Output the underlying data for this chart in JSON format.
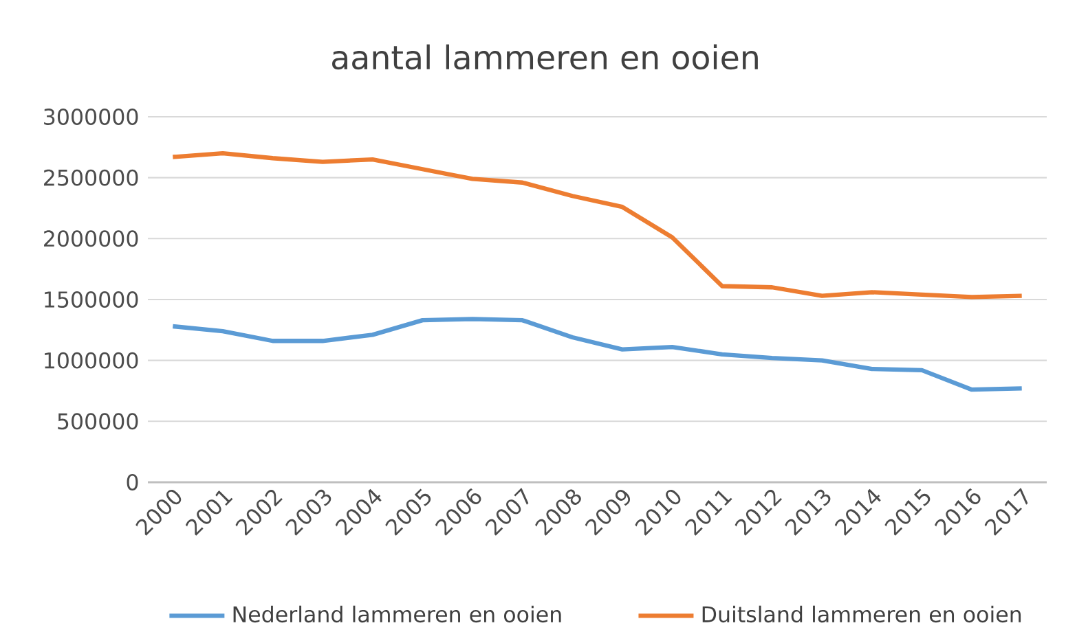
{
  "chart_data": {
    "type": "line",
    "title": "aantal lammeren en ooien",
    "categories": [
      "2000",
      "2001",
      "2002",
      "2003",
      "2004",
      "2005",
      "2006",
      "2007",
      "2008",
      "2009",
      "2010",
      "2011",
      "2012",
      "2013",
      "2014",
      "2015",
      "2016",
      "2017"
    ],
    "series": [
      {
        "name": "Nederland lammeren en ooien",
        "color": "#5b9bd5",
        "values": [
          1280000,
          1240000,
          1160000,
          1160000,
          1210000,
          1330000,
          1340000,
          1330000,
          1190000,
          1090000,
          1110000,
          1050000,
          1020000,
          1000000,
          930000,
          920000,
          760000,
          770000
        ]
      },
      {
        "name": "Duitsland lammeren en ooien",
        "color": "#ed7d31",
        "values": [
          2670000,
          2700000,
          2660000,
          2630000,
          2650000,
          2570000,
          2490000,
          2460000,
          2350000,
          2260000,
          2010000,
          1610000,
          1600000,
          1530000,
          1560000,
          1540000,
          1520000,
          1530000
        ]
      }
    ],
    "ylim": [
      0,
      3000000
    ],
    "yticks": [
      0,
      500000,
      1000000,
      1500000,
      2000000,
      2500000,
      3000000
    ],
    "grid": "y",
    "legend": "bottom",
    "marker": "none",
    "line_style": "solid"
  }
}
